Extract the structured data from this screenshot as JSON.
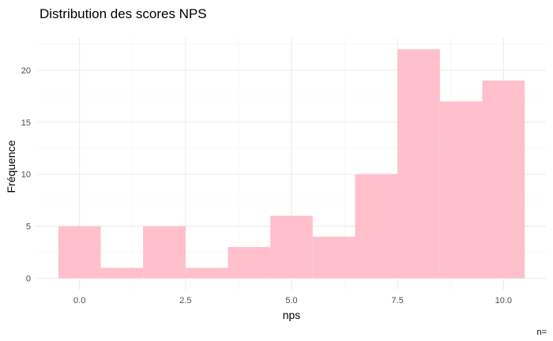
{
  "chart_data": {
    "type": "bar",
    "subtype": "histogram",
    "title": "Distribution des scores NPS",
    "xlabel": "nps",
    "ylabel": "Fréquence",
    "caption": "n=",
    "bar_color": "#FFC0CB",
    "grid": true,
    "bin_width": 1,
    "bins": [
      {
        "x": 0,
        "count": 5
      },
      {
        "x": 1,
        "count": 1
      },
      {
        "x": 2,
        "count": 5
      },
      {
        "x": 3,
        "count": 1
      },
      {
        "x": 4,
        "count": 3
      },
      {
        "x": 5,
        "count": 6
      },
      {
        "x": 6,
        "count": 4
      },
      {
        "x": 7,
        "count": 10
      },
      {
        "x": 8,
        "count": 22
      },
      {
        "x": 9,
        "count": 17
      },
      {
        "x": 10,
        "count": 19
      }
    ],
    "xlim": [
      -1.0,
      11.0
    ],
    "ylim": [
      -1.1,
      23.1
    ],
    "x_ticks": [
      0.0,
      2.5,
      5.0,
      7.5,
      10.0
    ],
    "x_tick_labels": [
      "0.0",
      "2.5",
      "5.0",
      "7.5",
      "10.0"
    ],
    "y_ticks": [
      0,
      5,
      10,
      15,
      20
    ],
    "y_tick_labels": [
      "0",
      "5",
      "10",
      "15",
      "20"
    ]
  }
}
